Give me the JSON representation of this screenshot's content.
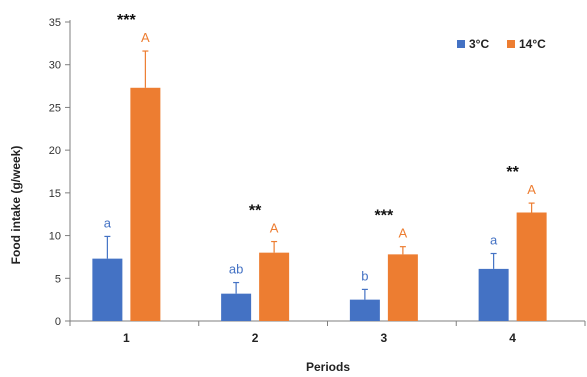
{
  "chart_data": {
    "type": "bar",
    "categories": [
      "1",
      "2",
      "3",
      "4"
    ],
    "xlabel": "Periods",
    "ylabel": "Food intake (g/week)",
    "ylim": [
      0,
      35
    ],
    "yticks": [
      0,
      5,
      10,
      15,
      20,
      25,
      30,
      35
    ],
    "grid": false,
    "legend_position": "top-right",
    "series": [
      {
        "name": "3°C",
        "color": "#4472C4",
        "values": [
          7.3,
          3.2,
          2.5,
          6.1
        ],
        "errors": [
          2.6,
          1.3,
          1.2,
          1.8
        ],
        "letters": [
          "a",
          "ab",
          "b",
          "a"
        ]
      },
      {
        "name": "14°C",
        "color": "#ED7D31",
        "values": [
          27.3,
          8.0,
          7.8,
          12.7
        ],
        "errors": [
          4.3,
          1.3,
          0.9,
          1.1
        ],
        "letters": [
          "A",
          "A",
          "A",
          "A"
        ]
      }
    ],
    "significance": [
      "***",
      "**",
      "***",
      "**"
    ]
  }
}
